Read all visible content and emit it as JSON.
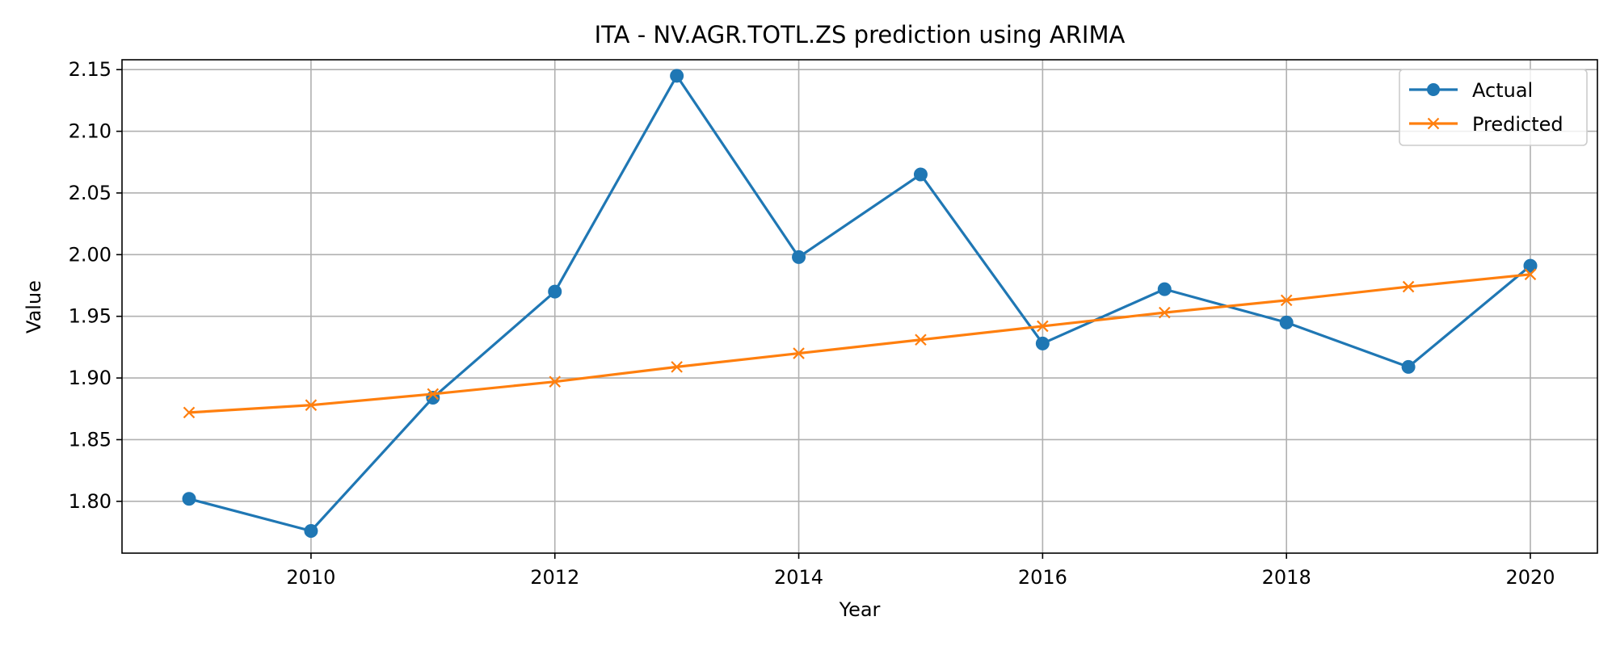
{
  "chart_data": {
    "type": "line",
    "title": "ITA - NV.AGR.TOTL.ZS prediction using ARIMA",
    "xlabel": "Year",
    "ylabel": "Value",
    "x": [
      2009,
      2010,
      2011,
      2012,
      2013,
      2014,
      2015,
      2016,
      2017,
      2018,
      2019,
      2020
    ],
    "xlim": [
      2008.45,
      2020.55
    ],
    "ylim": [
      1.758,
      2.158
    ],
    "xticks": [
      2010,
      2012,
      2014,
      2016,
      2018,
      2020
    ],
    "yticks": [
      1.8,
      1.85,
      1.9,
      1.95,
      2.0,
      2.05,
      2.1,
      2.15
    ],
    "ytick_labels": [
      "1.80",
      "1.85",
      "1.90",
      "1.95",
      "2.00",
      "2.05",
      "2.10",
      "2.15"
    ],
    "grid": true,
    "legend_position": "top-right",
    "series": [
      {
        "name": "Actual",
        "marker": "circle",
        "color": "#1f77b4",
        "values": [
          1.802,
          1.776,
          1.884,
          1.97,
          2.145,
          1.998,
          2.065,
          1.928,
          1.972,
          1.945,
          1.909,
          1.991
        ]
      },
      {
        "name": "Predicted",
        "marker": "x",
        "color": "#ff7f0e",
        "values": [
          1.872,
          1.878,
          1.887,
          1.897,
          1.909,
          1.92,
          1.931,
          1.942,
          1.953,
          1.963,
          1.974,
          1.984
        ]
      }
    ]
  }
}
